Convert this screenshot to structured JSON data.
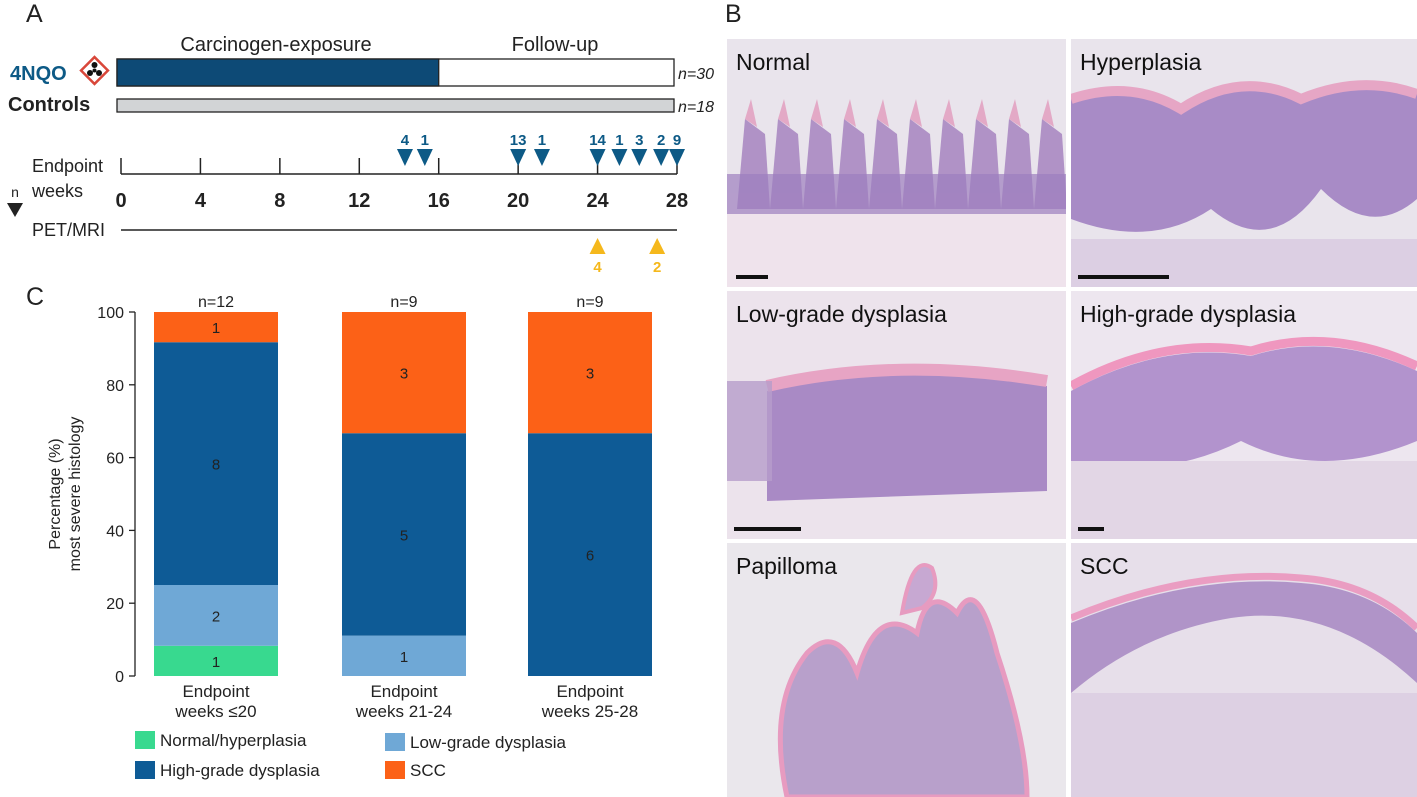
{
  "panels": {
    "a": "A",
    "b": "B",
    "c": "C"
  },
  "timeline": {
    "header_exposure": "Carcinogen-exposure",
    "header_followup": "Follow-up",
    "group_4nqo": "4NQO",
    "group_controls": "Controls",
    "n_4nqo": "n=30",
    "n_controls": "n=18",
    "endpoint_label_line1": "Endpoint",
    "endpoint_label_line2": "weeks",
    "n_marker_label": "n",
    "petmri_label": "PET/MRI",
    "week_ticks": [
      "0",
      "4",
      "8",
      "12",
      "16",
      "20",
      "24",
      "28"
    ],
    "exposure_end_week": 16,
    "endpoints": [
      {
        "week": 14.3,
        "n": "4"
      },
      {
        "week": 15.3,
        "n": "1"
      },
      {
        "week": 20.0,
        "n": "13"
      },
      {
        "week": 21.2,
        "n": "1"
      },
      {
        "week": 24.0,
        "n": "14"
      },
      {
        "week": 25.1,
        "n": "1"
      },
      {
        "week": 26.1,
        "n": "3"
      },
      {
        "week": 27.2,
        "n": "2"
      },
      {
        "week": 28.0,
        "n": "9"
      }
    ],
    "petmri": [
      {
        "week": 24.0,
        "n": "4"
      },
      {
        "week": 27.0,
        "n": "2"
      }
    ],
    "colors": {
      "exposure": "#0d4a76",
      "controls": "#d2d4d6",
      "endpoint_marker": "#0d5a86",
      "petmri_marker": "#f5b81c",
      "hazard": "#d9473a"
    }
  },
  "chart_data": {
    "type": "bar",
    "stacked": true,
    "categories": [
      "Endpoint\nweeks ≤20",
      "Endpoint\nweeks 21-24",
      "Endpoint\nweeks 25-28"
    ],
    "category_lines": [
      [
        "Endpoint",
        "weeks ≤20"
      ],
      [
        "Endpoint",
        "weeks 21-24"
      ],
      [
        "Endpoint",
        "weeks 25-28"
      ]
    ],
    "totals": [
      "n=12",
      "n=9",
      "n=9"
    ],
    "ylabel_line1": "Percentage (%)",
    "ylabel_line2": "most severe histology",
    "ylim": [
      0,
      100
    ],
    "yticks": [
      0,
      20,
      40,
      60,
      80,
      100
    ],
    "series": [
      {
        "name": "Normal/hyperplasia",
        "color": "#38d98f",
        "values": [
          8.3,
          0,
          0
        ],
        "counts": [
          "1",
          "",
          ""
        ]
      },
      {
        "name": "Low-grade dysplasia",
        "color": "#6fa8d6",
        "values": [
          16.7,
          11.1,
          0
        ],
        "counts": [
          "2",
          "1",
          ""
        ]
      },
      {
        "name": "High-grade dysplasia",
        "color": "#0e5b96",
        "values": [
          66.7,
          55.6,
          66.7
        ],
        "counts": [
          "8",
          "5",
          "6"
        ]
      },
      {
        "name": "SCC",
        "color": "#fc6117",
        "values": [
          8.3,
          33.3,
          33.3
        ],
        "counts": [
          "1",
          "3",
          "3"
        ]
      }
    ],
    "legend": [
      {
        "name": "Normal/hyperplasia",
        "color": "#38d98f"
      },
      {
        "name": "Low-grade dysplasia",
        "color": "#6fa8d6"
      },
      {
        "name": "High-grade dysplasia",
        "color": "#0e5b96"
      },
      {
        "name": "SCC",
        "color": "#fc6117"
      }
    ],
    "legend_placement": "bottom",
    "grid": false
  },
  "histology": {
    "tiles": [
      "Normal",
      "Hyperplasia",
      "Low-grade dysplasia",
      "High-grade dysplasia",
      "Papilloma",
      "SCC"
    ]
  }
}
